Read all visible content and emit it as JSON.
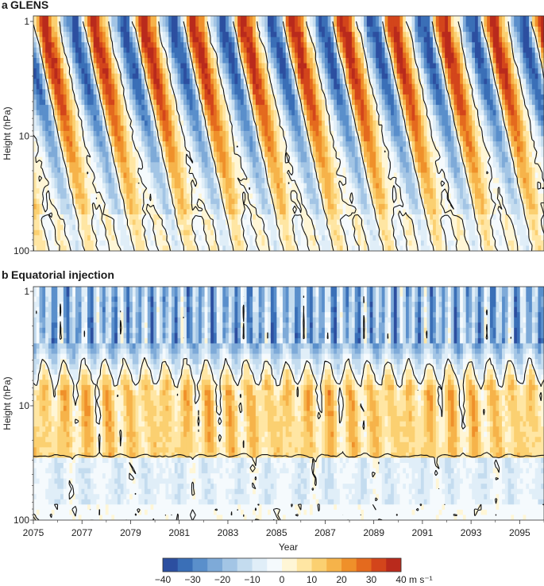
{
  "chart_data": [
    {
      "type": "heatmap",
      "panel": "a",
      "title": "GLENS",
      "ylabel": "Height (hPa)",
      "xlabel": "",
      "y_scale": "log",
      "ylim": [
        100,
        1
      ],
      "y_ticks": [
        1,
        10,
        100
      ],
      "y_tick_labels": [
        "1",
        "10",
        "100"
      ],
      "xlim": [
        2075,
        2096
      ],
      "x_tick_labels": [],
      "description_regime": "alternating QBO descending westerly/easterly bands",
      "qbo_onsets_year": [
        2075.2,
        2077.3,
        2079.4,
        2081.3,
        2083.3,
        2085.2,
        2087.4,
        2089.3,
        2091.2,
        2093.3,
        2095.2
      ]
    },
    {
      "type": "heatmap",
      "panel": "b",
      "title": "Equatorial injection",
      "ylabel": "Height (hPa)",
      "xlabel": "Year",
      "y_scale": "log",
      "ylim": [
        100,
        1
      ],
      "y_ticks": [
        1,
        10,
        100
      ],
      "y_tick_labels": [
        "1",
        "10",
        "100"
      ],
      "xlim": [
        2075,
        2096
      ],
      "x_ticks": [
        2075,
        2077,
        2079,
        2081,
        2083,
        2085,
        2087,
        2089,
        2091,
        2093,
        2095
      ],
      "x_tick_labels": [
        "2075",
        "2077",
        "2079",
        "2081",
        "2083",
        "2085",
        "2087",
        "2089",
        "2091",
        "2093",
        "2095"
      ],
      "description_regime": "persistent westerly band near 10-30 hPa with easterlies above"
    }
  ],
  "colorbar": {
    "min": -40,
    "max": 40,
    "step": 5,
    "tick_values": [
      -40,
      -30,
      -20,
      -10,
      0,
      10,
      20,
      30,
      40
    ],
    "tick_labels": [
      "−40",
      "−30",
      "−20",
      "−10",
      "0",
      "10",
      "20",
      "30",
      "40"
    ],
    "unit": "m s⁻¹",
    "colors": [
      "#2c4fa0",
      "#3a6fb7",
      "#5a8fcb",
      "#7eaad8",
      "#a3c5e5",
      "#c4dcef",
      "#e0eef8",
      "#f5fafd",
      "#fff6d6",
      "#ffe6a3",
      "#fbd071",
      "#f6b34a",
      "#ef902a",
      "#e46a1e",
      "#d3451b",
      "#b92a1c"
    ]
  },
  "labels": {
    "panel_a_letter": "a",
    "panel_a_title": "GLENS",
    "panel_b_letter": "b",
    "panel_b_title": "Equatorial injection",
    "ylabel_a": "Height (hPa)",
    "ylabel_b": "Height (hPa)",
    "xlabel": "Year"
  }
}
